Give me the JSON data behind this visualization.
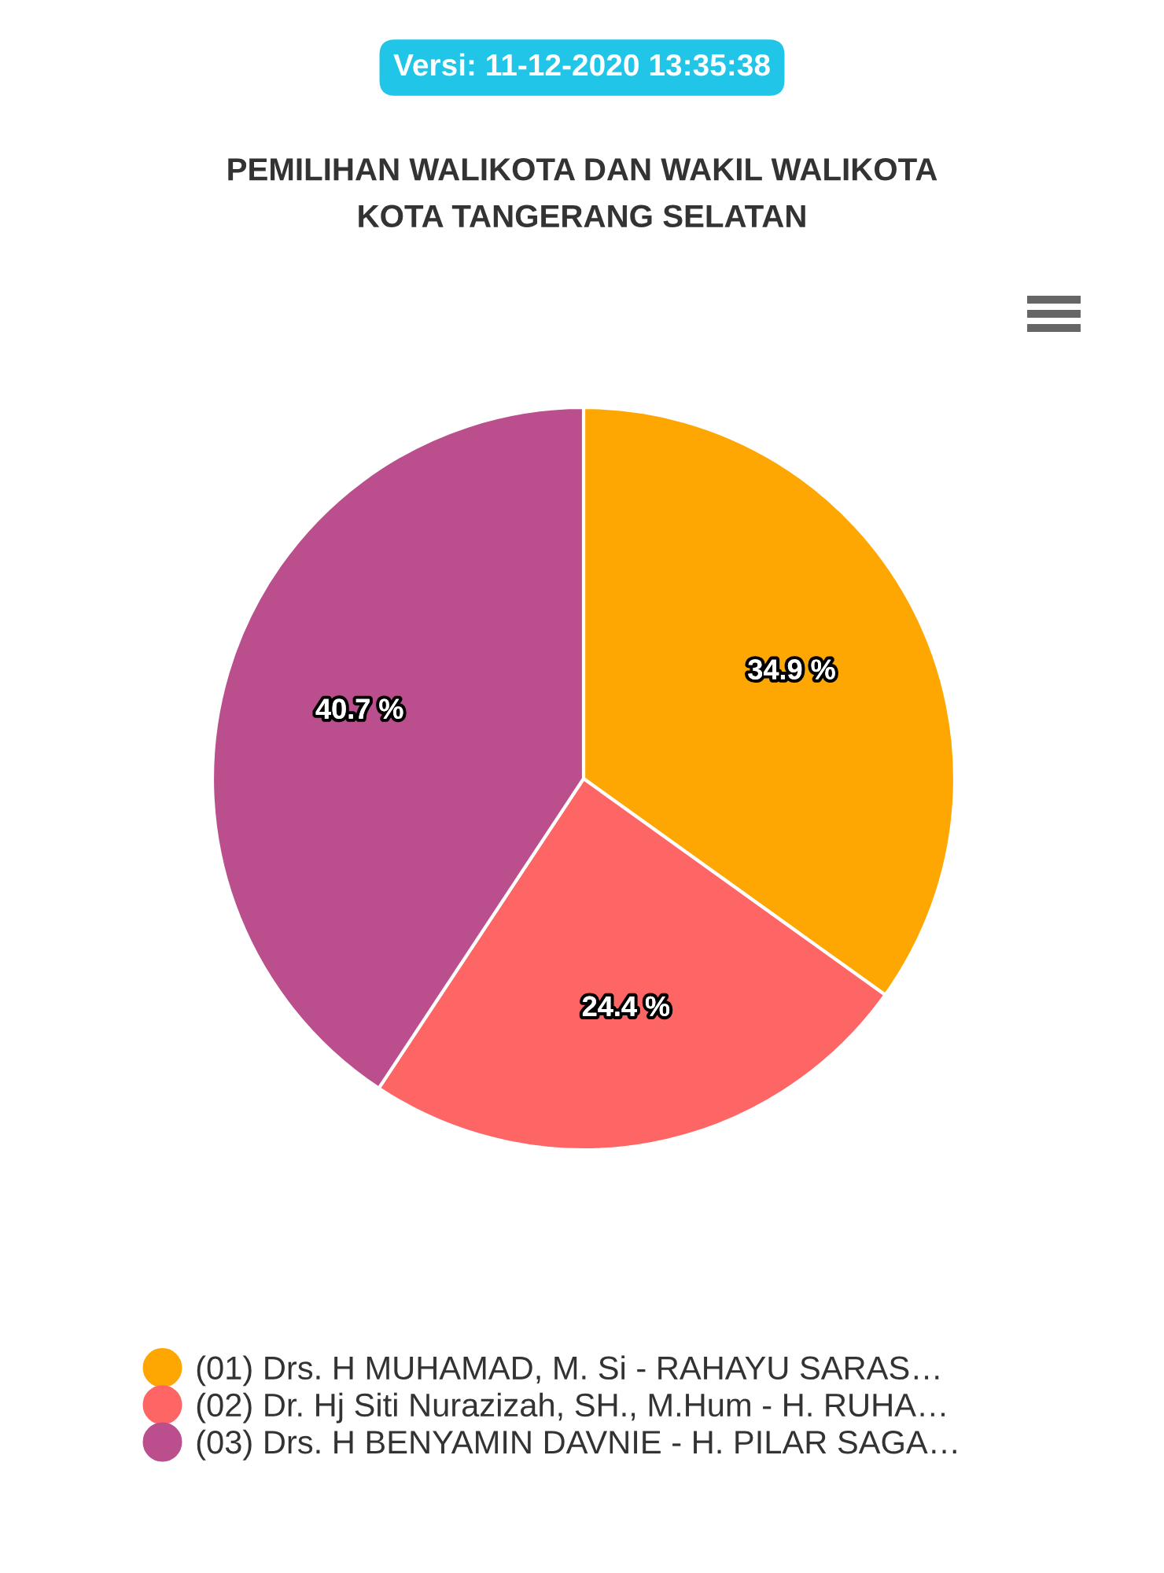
{
  "chart_data": {
    "type": "pie",
    "title": "PEMILIHAN WALIKOTA DAN WAKIL WALIKOTA\nKOTA TANGERANG SELATAN",
    "annotations": [
      "Versi: 11-12-2020 13:35:38"
    ],
    "categories": [
      "(01) Drs. H MUHAMAD, M. Si - RAHAYU SARAS…",
      "(02) Dr. Hj Siti Nurazizah, SH., M.Hum - H. RUHA…",
      "(03) Drs. H BENYAMIN DAVNIE - H. PILAR SAGA…"
    ],
    "values": [
      34.9,
      24.4,
      40.7
    ],
    "value_labels": [
      "34.9 %",
      "24.4 %",
      "40.7 %"
    ],
    "colors": [
      "#fea602",
      "#fe6565",
      "#bb4f8e"
    ],
    "legend": "bottom"
  }
}
